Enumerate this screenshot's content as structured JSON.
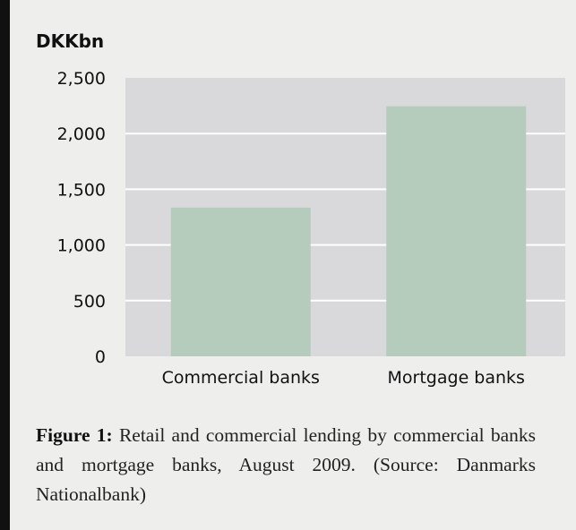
{
  "chart_data": {
    "type": "bar",
    "unit_label": "DKKbn",
    "categories": [
      "Commercial banks",
      "Mortgage banks"
    ],
    "values": [
      1335,
      2245
    ],
    "ylim": [
      0,
      2500
    ],
    "yticks": [
      "0",
      "500",
      "1,000",
      "1,500",
      "2,000",
      "2,500"
    ],
    "grid": true,
    "colors": {
      "bar": "#b5cbbc",
      "plot_background": "#d9d9db",
      "gridline": "#ffffff"
    }
  },
  "caption": {
    "label": "Figure 1:",
    "text": "Retail and commercial lending by commercial banks and mortgage banks, August 2009. (Source: Danmarks Nationalbank)"
  }
}
